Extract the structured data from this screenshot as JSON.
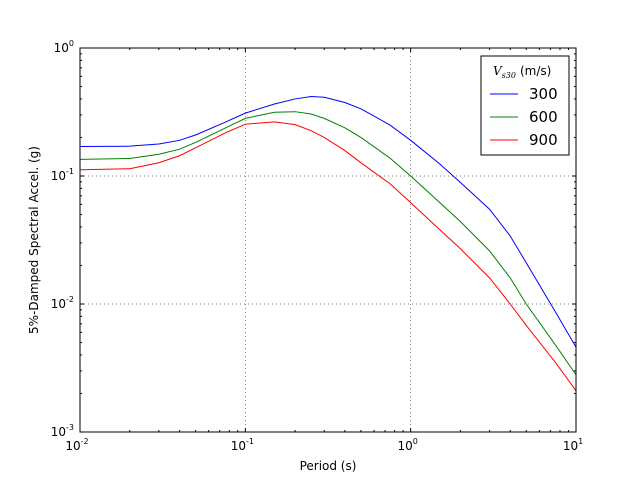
{
  "chart_data": {
    "type": "line",
    "xlabel": "Period (s)",
    "ylabel": "5%-Damped Spectral Accel. (g)",
    "xscale": "log",
    "yscale": "log",
    "xlim": [
      0.01,
      10
    ],
    "ylim": [
      0.001,
      1
    ],
    "grid": true,
    "legend_placement": "top-right",
    "x_ticks": [
      {
        "base": "10",
        "exp": "-2",
        "value": 0.01
      },
      {
        "base": "10",
        "exp": "-1",
        "value": 0.1
      },
      {
        "base": "10",
        "exp": "0",
        "value": 1
      },
      {
        "base": "10",
        "exp": "1",
        "value": 10
      }
    ],
    "y_ticks": [
      {
        "base": "10",
        "exp": "-3",
        "value": 0.001
      },
      {
        "base": "10",
        "exp": "-2",
        "value": 0.01
      },
      {
        "base": "10",
        "exp": "-1",
        "value": 0.1
      },
      {
        "base": "10",
        "exp": "0",
        "value": 1
      }
    ],
    "legend": {
      "title_symbol": "V",
      "title_subscript": "s30",
      "title_unit": "(m/s)"
    },
    "x": [
      0.01,
      0.02,
      0.03,
      0.04,
      0.05,
      0.075,
      0.1,
      0.15,
      0.2,
      0.25,
      0.3,
      0.4,
      0.5,
      0.75,
      1.0,
      1.5,
      2.0,
      3.0,
      4.0,
      5.0,
      7.5,
      10.0
    ],
    "series": [
      {
        "name": "300",
        "color": "#0000ff",
        "values": [
          0.17,
          0.171,
          0.178,
          0.19,
          0.209,
          0.262,
          0.31,
          0.365,
          0.4,
          0.418,
          0.412,
          0.375,
          0.335,
          0.25,
          0.19,
          0.124,
          0.089,
          0.055,
          0.034,
          0.021,
          0.0087,
          0.0046
        ]
      },
      {
        "name": "600",
        "color": "#008000",
        "values": [
          0.135,
          0.137,
          0.148,
          0.162,
          0.183,
          0.236,
          0.282,
          0.315,
          0.318,
          0.305,
          0.282,
          0.238,
          0.2,
          0.138,
          0.1,
          0.062,
          0.044,
          0.026,
          0.016,
          0.01,
          0.0048,
          0.0028
        ]
      },
      {
        "name": "900",
        "color": "#ff0000",
        "values": [
          0.112,
          0.114,
          0.127,
          0.144,
          0.166,
          0.216,
          0.254,
          0.265,
          0.252,
          0.226,
          0.2,
          0.158,
          0.127,
          0.087,
          0.062,
          0.038,
          0.027,
          0.016,
          0.01,
          0.0068,
          0.0035,
          0.0021
        ]
      }
    ]
  }
}
